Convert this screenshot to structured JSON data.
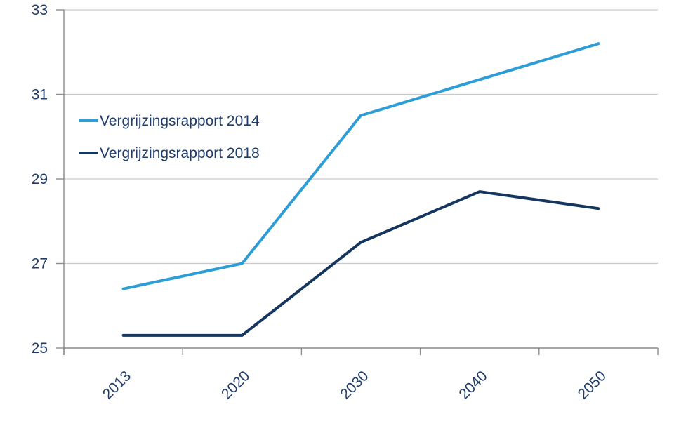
{
  "chart_data": {
    "type": "line",
    "categories": [
      "2013",
      "2020",
      "2030",
      "2040",
      "2050"
    ],
    "series": [
      {
        "name": "Vergrijzingsrapport 2014",
        "color": "#2D9DD7",
        "values": [
          26.4,
          27.0,
          30.5,
          31.35,
          32.2
        ]
      },
      {
        "name": "Vergrijzingsrapport 2018",
        "color": "#15365F",
        "values": [
          25.3,
          25.3,
          27.5,
          28.7,
          28.3
        ]
      }
    ],
    "title": "",
    "xlabel": "",
    "ylabel": "",
    "ylim": [
      25,
      33
    ],
    "yticks": [
      25,
      27,
      29,
      31,
      33
    ],
    "grid": true,
    "legend_position": "inside-upper-left"
  },
  "style": {
    "text_color": "#1F3C68",
    "gridline_color": "#C9C9C9",
    "axis_color": "#8C8C8C",
    "background": "#FFFFFF",
    "line_width": 4
  }
}
